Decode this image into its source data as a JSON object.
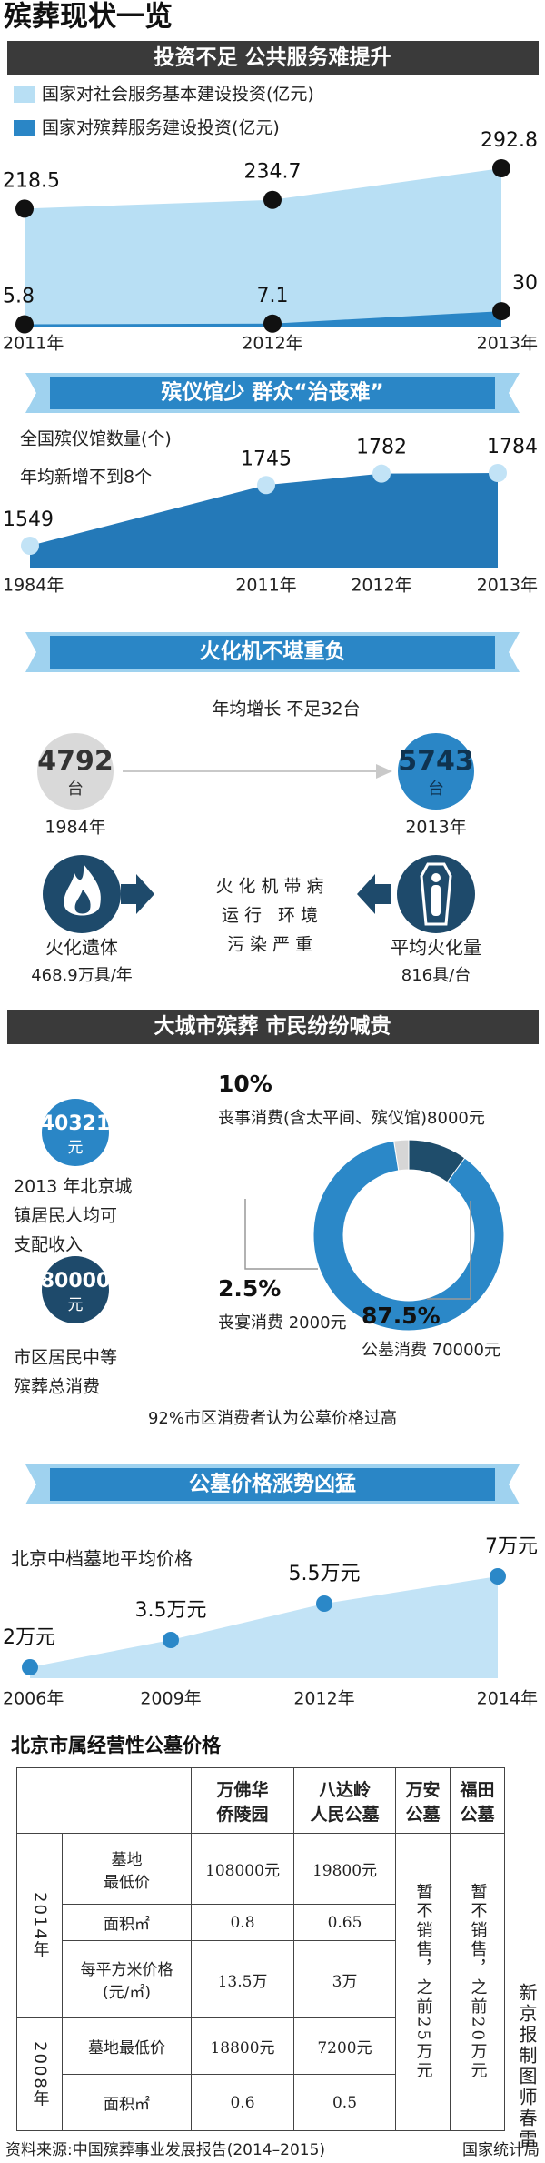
{
  "title": "殡葬现状一览",
  "headers": [
    "投资不足 公共服务难提升",
    "殡仪馆少 群众“治丧难”",
    "火化机不堪重负",
    "大城市殡葬 市民纷纷喊贵",
    "公墓价格涨势凶猛"
  ],
  "chart_data": [
    {
      "type": "area",
      "categories": [
        "2011年",
        "2012年",
        "2013年"
      ],
      "marker_color": "#111111",
      "series": [
        {
          "name": "国家对社会服务基本建设投资(亿元)",
          "color": "#b8dff4",
          "values": [
            218.5,
            234.7,
            292.8
          ]
        },
        {
          "name": "国家对殡葬服务建设投资(亿元)",
          "color": "#2a86c6",
          "values": [
            5.8,
            7.1,
            30
          ]
        }
      ]
    },
    {
      "type": "area",
      "title": "全国殡仪馆数量(个)",
      "subtitle": "年均新增不到8个",
      "categories": [
        "1984年",
        "2011年",
        "2012年",
        "2013年"
      ],
      "values": [
        1549,
        1745,
        1782,
        1784
      ],
      "color": "#2479b8",
      "marker_color": "#c2e3f6"
    },
    {
      "type": "pie",
      "categories": [
        "丧事消费(含太平间、殡仪馆)8000元",
        "丧宴消费 2000元",
        "公墓消费 70000元"
      ],
      "values": [
        10,
        2.5,
        87.5
      ],
      "value_labels": [
        "10%",
        "2.5%",
        "87.5%"
      ],
      "colors": [
        "#1f4d6b",
        "#d6d6d6",
        "#2b88c8"
      ],
      "annotation": "92%市区消费者认为公墓价格过高"
    },
    {
      "type": "area",
      "title": "北京中档墓地平均价格",
      "categories": [
        "2006年",
        "2009年",
        "2012年",
        "2014年"
      ],
      "values": [
        2,
        3.5,
        5.5,
        7
      ],
      "value_labels": [
        "2万元",
        "3.5万元",
        "5.5万元",
        "7万元"
      ],
      "color": "#c2e3f6",
      "marker_color": "#2b88c8"
    }
  ],
  "cremators": {
    "growth": "年均增长 不足32台",
    "counts": [
      {
        "value": 4792,
        "unit": "台",
        "year": "1984年"
      },
      {
        "value": 5743,
        "unit": "台",
        "year": "2013年"
      }
    ],
    "bodies": [
      "火化遗体",
      "468.9万具/年"
    ],
    "per_machine": [
      "平均火化量",
      "816具/台"
    ],
    "problems": [
      "火化机带病",
      "运行 环境",
      "污染严重"
    ]
  },
  "spending": {
    "income": {
      "value": 40321,
      "unit": "元",
      "lines": [
        "2013 年北京城",
        "镇居民人均可",
        "支配收入"
      ]
    },
    "total": {
      "value": 80000,
      "unit": "元",
      "lines": [
        "市区居民中等",
        "殡葬总消费"
      ]
    }
  },
  "table": {
    "title": "北京市属经营性公墓价格",
    "columns": [
      [
        "万佛华",
        "侨陵园"
      ],
      [
        "八达岭",
        "人民公墓"
      ],
      [
        "万安",
        "公墓"
      ],
      [
        "福田",
        "公墓"
      ]
    ],
    "groups": [
      {
        "year": "2014年",
        "rows": [
          {
            "label": [
              "墓地",
              "最低价"
            ],
            "values": [
              "108000元",
              "19800元"
            ]
          },
          {
            "label": [
              "面积㎡"
            ],
            "values": [
              "0.8",
              "0.65"
            ]
          },
          {
            "label": [
              "每平方米价格",
              "(元/㎡)"
            ],
            "values": [
              "13.5万",
              "3万"
            ]
          }
        ]
      },
      {
        "year": "2008年",
        "rows": [
          {
            "label": [
              "墓地最低价"
            ],
            "values": [
              "18800元",
              "7200元"
            ]
          },
          {
            "label": [
              "面积㎡"
            ],
            "values": [
              "0.6",
              "0.5"
            ]
          }
        ]
      }
    ],
    "notes": [
      "暂不销售，之前25万元",
      "暂不销售，之前20万元"
    ]
  },
  "source": "资料来源:中国殡葬事业发展报告(2014–2015)",
  "agency": "国家统计局",
  "credit": "新京报制图师春雷"
}
